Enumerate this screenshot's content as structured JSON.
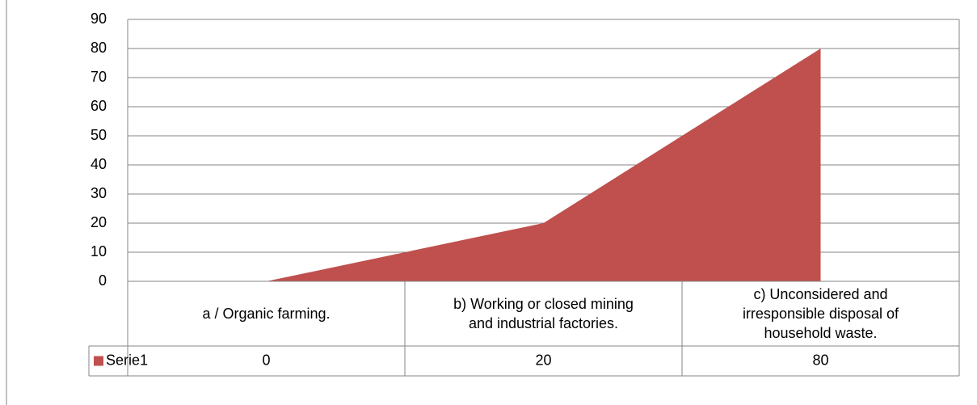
{
  "chart_data": {
    "type": "area",
    "categories": [
      "a / Organic farming.",
      "b)  Working or closed mining and industrial factories.",
      "c)  Unconsidered and irresponsible disposal of household waste."
    ],
    "series": [
      {
        "name": "Serie1",
        "color": "#c0504d",
        "values": [
          0,
          20,
          80
        ]
      }
    ],
    "ylim": [
      0,
      90
    ],
    "yticks": [
      0,
      10,
      20,
      30,
      40,
      50,
      60,
      70,
      80,
      90
    ],
    "grid": true,
    "data_table": true
  }
}
